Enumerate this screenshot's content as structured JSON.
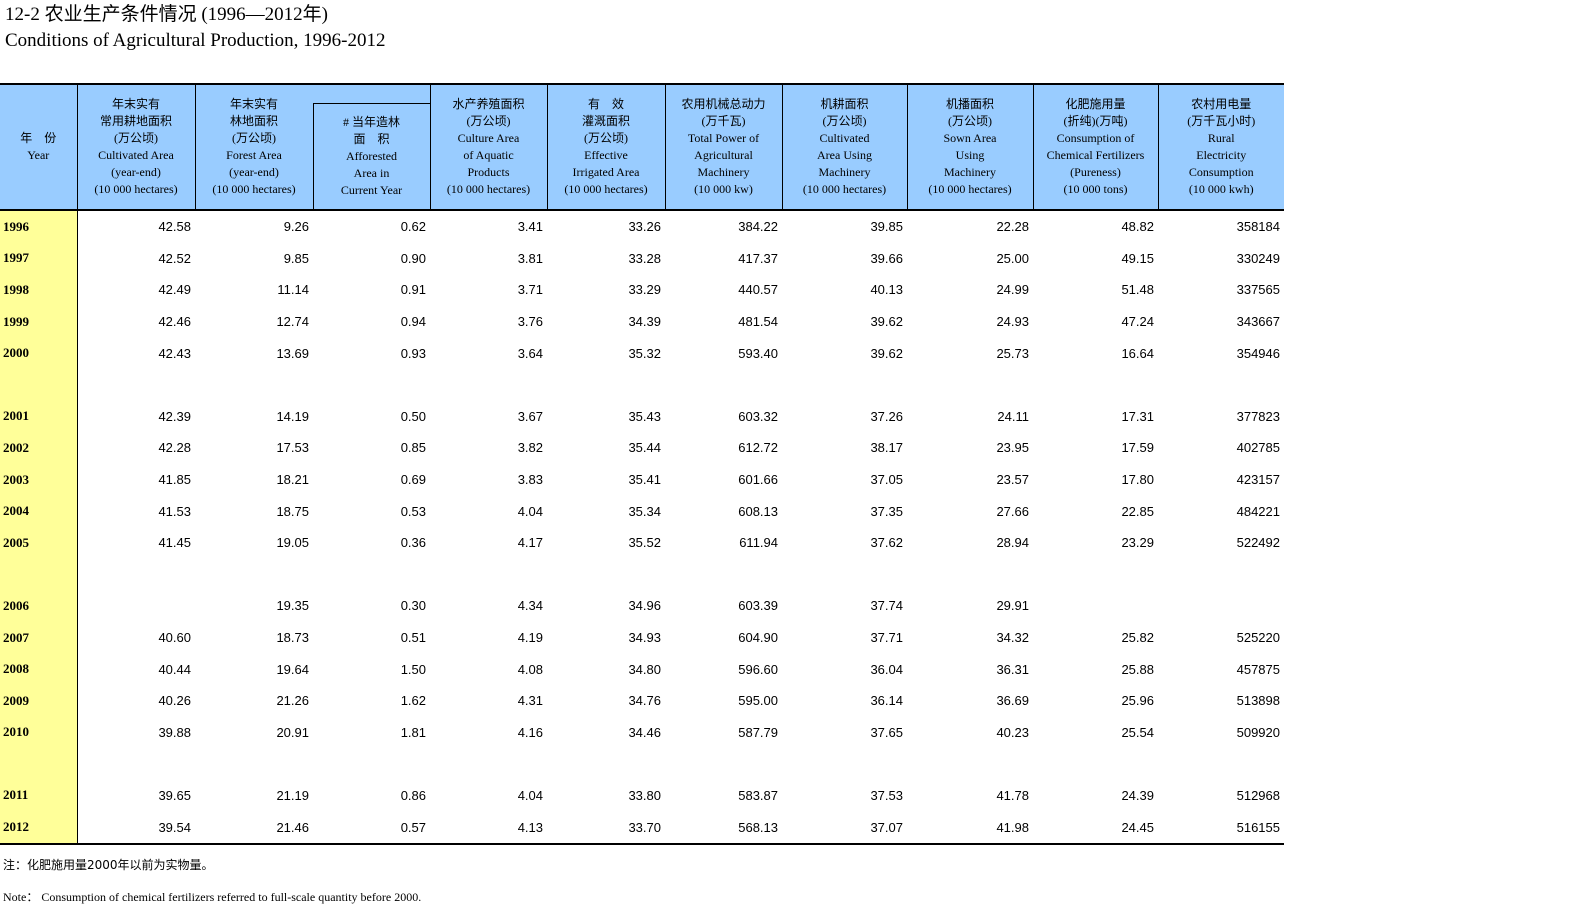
{
  "title": {
    "cn": "12-2 农业生产条件情况 (1996—2012年)",
    "en": "Conditions of Agricultural Production, 1996-2012"
  },
  "headers": {
    "year": [
      "年　份",
      "Year"
    ],
    "cultivated": [
      "年末实有",
      "常用耕地面积",
      "(万公顷)",
      "Cultivated Area",
      "(year-end)",
      "(10 000 hectares)"
    ],
    "forest_group": [
      "年末实有",
      "林地面积",
      "(万公顷)"
    ],
    "forest": [
      "Forest Area",
      "(year-end)",
      "(10 000 hectares)"
    ],
    "afforested": [
      "# 当年造林",
      "面　积",
      "Afforested",
      "Area in",
      "Current Year"
    ],
    "aquatic": [
      "水产养殖面积",
      "(万公顷)",
      "Culture Area",
      "of Aquatic",
      "Products",
      "(10 000 hectares)"
    ],
    "irrigated": [
      "有　效",
      "灌溉面积",
      "(万公顷)",
      "Effective",
      "Irrigated Area",
      "(10 000 hectares)"
    ],
    "power": [
      "农用机械总动力",
      "(万千瓦)",
      "Total Power of",
      "Agricultural",
      "Machinery",
      "(10 000 kw)"
    ],
    "machine_cult": [
      "机耕面积",
      "(万公顷)",
      "Cultivated",
      "Area Using",
      "Machinery",
      "(10 000 hectares)"
    ],
    "machine_sown": [
      "机播面积",
      "(万公顷)",
      "Sown Area",
      "Using",
      "Machinery",
      "(10 000 hectares)"
    ],
    "fertilizer": [
      "化肥施用量",
      "(折纯)(万吨)",
      "Consumption of",
      "Chemical Fertilizers",
      "(Pureness)",
      "(10 000 tons)"
    ],
    "electricity": [
      "农村用电量",
      "(万千瓦小时)",
      "Rural",
      "Electricity",
      "Consumption",
      "(10 000 kwh)"
    ]
  },
  "rows": [
    {
      "year": "1996",
      "cells": [
        "42.58",
        "9.26",
        "0.62",
        "3.41",
        "33.26",
        "384.22",
        "39.85",
        "22.28",
        "48.82",
        "358184"
      ]
    },
    {
      "year": "1997",
      "cells": [
        "42.52",
        "9.85",
        "0.90",
        "3.81",
        "33.28",
        "417.37",
        "39.66",
        "25.00",
        "49.15",
        "330249"
      ]
    },
    {
      "year": "1998",
      "cells": [
        "42.49",
        "11.14",
        "0.91",
        "3.71",
        "33.29",
        "440.57",
        "40.13",
        "24.99",
        "51.48",
        "337565"
      ]
    },
    {
      "year": "1999",
      "cells": [
        "42.46",
        "12.74",
        "0.94",
        "3.76",
        "34.39",
        "481.54",
        "39.62",
        "24.93",
        "47.24",
        "343667"
      ]
    },
    {
      "year": "2000",
      "cells": [
        "42.43",
        "13.69",
        "0.93",
        "3.64",
        "35.32",
        "593.40",
        "39.62",
        "25.73",
        "16.64",
        "354946"
      ]
    },
    {
      "year": "",
      "cells": [
        "",
        "",
        "",
        "",
        "",
        "",
        "",
        "",
        "",
        ""
      ]
    },
    {
      "year": "2001",
      "cells": [
        "42.39",
        "14.19",
        "0.50",
        "3.67",
        "35.43",
        "603.32",
        "37.26",
        "24.11",
        "17.31",
        "377823"
      ]
    },
    {
      "year": "2002",
      "cells": [
        "42.28",
        "17.53",
        "0.85",
        "3.82",
        "35.44",
        "612.72",
        "38.17",
        "23.95",
        "17.59",
        "402785"
      ]
    },
    {
      "year": "2003",
      "cells": [
        "41.85",
        "18.21",
        "0.69",
        "3.83",
        "35.41",
        "601.66",
        "37.05",
        "23.57",
        "17.80",
        "423157"
      ]
    },
    {
      "year": "2004",
      "cells": [
        "41.53",
        "18.75",
        "0.53",
        "4.04",
        "35.34",
        "608.13",
        "37.35",
        "27.66",
        "22.85",
        "484221"
      ]
    },
    {
      "year": "2005",
      "cells": [
        "41.45",
        "19.05",
        "0.36",
        "4.17",
        "35.52",
        "611.94",
        "37.62",
        "28.94",
        "23.29",
        "522492"
      ]
    },
    {
      "year": "",
      "cells": [
        "",
        "",
        "",
        "",
        "",
        "",
        "",
        "",
        "",
        ""
      ]
    },
    {
      "year": "2006",
      "cells": [
        "",
        "19.35",
        "0.30",
        "4.34",
        "34.96",
        "603.39",
        "37.74",
        "29.91",
        "",
        ""
      ]
    },
    {
      "year": "2007",
      "cells": [
        "40.60",
        "18.73",
        "0.51",
        "4.19",
        "34.93",
        "604.90",
        "37.71",
        "34.32",
        "25.82",
        "525220"
      ]
    },
    {
      "year": "2008",
      "cells": [
        "40.44",
        "19.64",
        "1.50",
        "4.08",
        "34.80",
        "596.60",
        "36.04",
        "36.31",
        "25.88",
        "457875"
      ]
    },
    {
      "year": "2009",
      "cells": [
        "40.26",
        "21.26",
        "1.62",
        "4.31",
        "34.76",
        "595.00",
        "36.14",
        "36.69",
        "25.96",
        "513898"
      ]
    },
    {
      "year": "2010",
      "cells": [
        "39.88",
        "20.91",
        "1.81",
        "4.16",
        "34.46",
        "587.79",
        "37.65",
        "40.23",
        "25.54",
        "509920"
      ]
    },
    {
      "year": "",
      "cells": [
        "",
        "",
        "",
        "",
        "",
        "",
        "",
        "",
        "",
        ""
      ]
    },
    {
      "year": "2011",
      "cells": [
        "39.65",
        "21.19",
        "0.86",
        "4.04",
        "33.80",
        "583.87",
        "37.53",
        "41.78",
        "24.39",
        "512968"
      ]
    },
    {
      "year": "2012",
      "cells": [
        "39.54",
        "21.46",
        "0.57",
        "4.13",
        "33.70",
        "568.13",
        "37.07",
        "41.98",
        "24.45",
        "516155"
      ]
    }
  ],
  "notes": {
    "cn": "注：化肥施用量2000年以前为实物量。",
    "en": "Note： Consumption of chemical fertilizers referred to full-scale quantity before 2000."
  }
}
